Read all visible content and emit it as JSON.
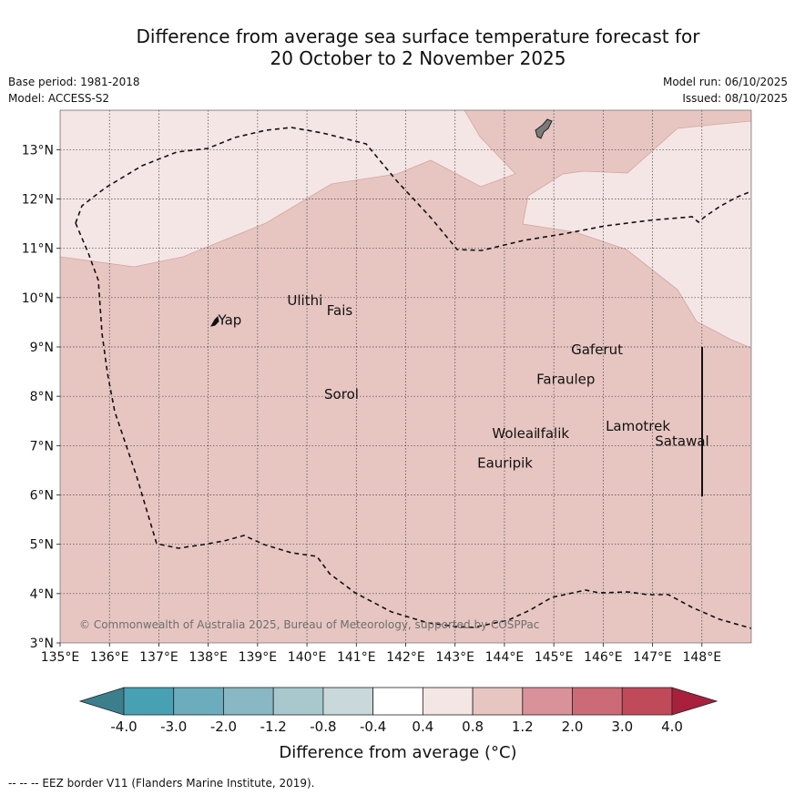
{
  "title": {
    "line1": "Difference from average sea surface temperature forecast for",
    "line2": "20 October to 2 November 2025"
  },
  "meta": {
    "base_period": "Base period: 1981-2018",
    "model": "Model: ACCESS-S2",
    "model_run": "Model run: 06/10/2025",
    "issued": "Issued: 08/10/2025"
  },
  "map": {
    "lon_range": [
      135,
      149
    ],
    "lat_range": [
      3,
      13.8
    ],
    "x_ticks": [
      "135°E",
      "136°E",
      "137°E",
      "138°E",
      "139°E",
      "140°E",
      "141°E",
      "142°E",
      "143°E",
      "144°E",
      "145°E",
      "146°E",
      "147°E",
      "148°E"
    ],
    "y_ticks": [
      "3°N",
      "4°N",
      "5°N",
      "6°N",
      "7°N",
      "8°N",
      "9°N",
      "10°N",
      "11°N",
      "12°N",
      "13°N"
    ],
    "colors": {
      "band_0_4_0_8": "#f4e6e5",
      "band_0_8_1_2": "#e7c6c2",
      "band_0_8_1_2_edge": "#d3a5a0",
      "land": "#7a7a7a"
    },
    "places": [
      {
        "name": "Yap",
        "lon": 138.2,
        "lat": 9.45
      },
      {
        "name": "Ulithi",
        "lon": 139.6,
        "lat": 9.85
      },
      {
        "name": "Fais",
        "lon": 140.4,
        "lat": 9.65
      },
      {
        "name": "Gaferut",
        "lon": 145.35,
        "lat": 8.85
      },
      {
        "name": "Faraulep",
        "lon": 144.65,
        "lat": 8.25
      },
      {
        "name": "Sorol",
        "lon": 140.35,
        "lat": 7.95
      },
      {
        "name": "Lamotrek",
        "lon": 146.05,
        "lat": 7.3
      },
      {
        "name": "Woleai",
        "lon": 143.75,
        "lat": 7.15
      },
      {
        "name": "Ifalik",
        "lon": 144.65,
        "lat": 7.15
      },
      {
        "name": "Satawal",
        "lon": 147.05,
        "lat": 7.0
      },
      {
        "name": "Eauripik",
        "lon": 143.45,
        "lat": 6.55
      }
    ],
    "copyright": "© Commonwealth of Australia 2025, Bureau of Meteorology, supported by COSPPac"
  },
  "colorbar": {
    "labels": [
      "-4.0",
      "-3.0",
      "-2.0",
      "-1.2",
      "-0.8",
      "-0.4",
      "0.4",
      "0.8",
      "1.2",
      "2.0",
      "3.0",
      "4.0"
    ],
    "colors": [
      "#3b7f8c",
      "#48a1b3",
      "#6badbc",
      "#89b7c3",
      "#a8c8ce",
      "#c8d8db",
      "#ffffff",
      "#f4e6e5",
      "#e7c6c2",
      "#d9919a",
      "#cc6b77",
      "#c04a5a",
      "#a8203c"
    ],
    "title": "Difference from average (°C)"
  },
  "footer": "--  --  -- EEZ border V11 (Flanders Marine Institute, 2019)."
}
